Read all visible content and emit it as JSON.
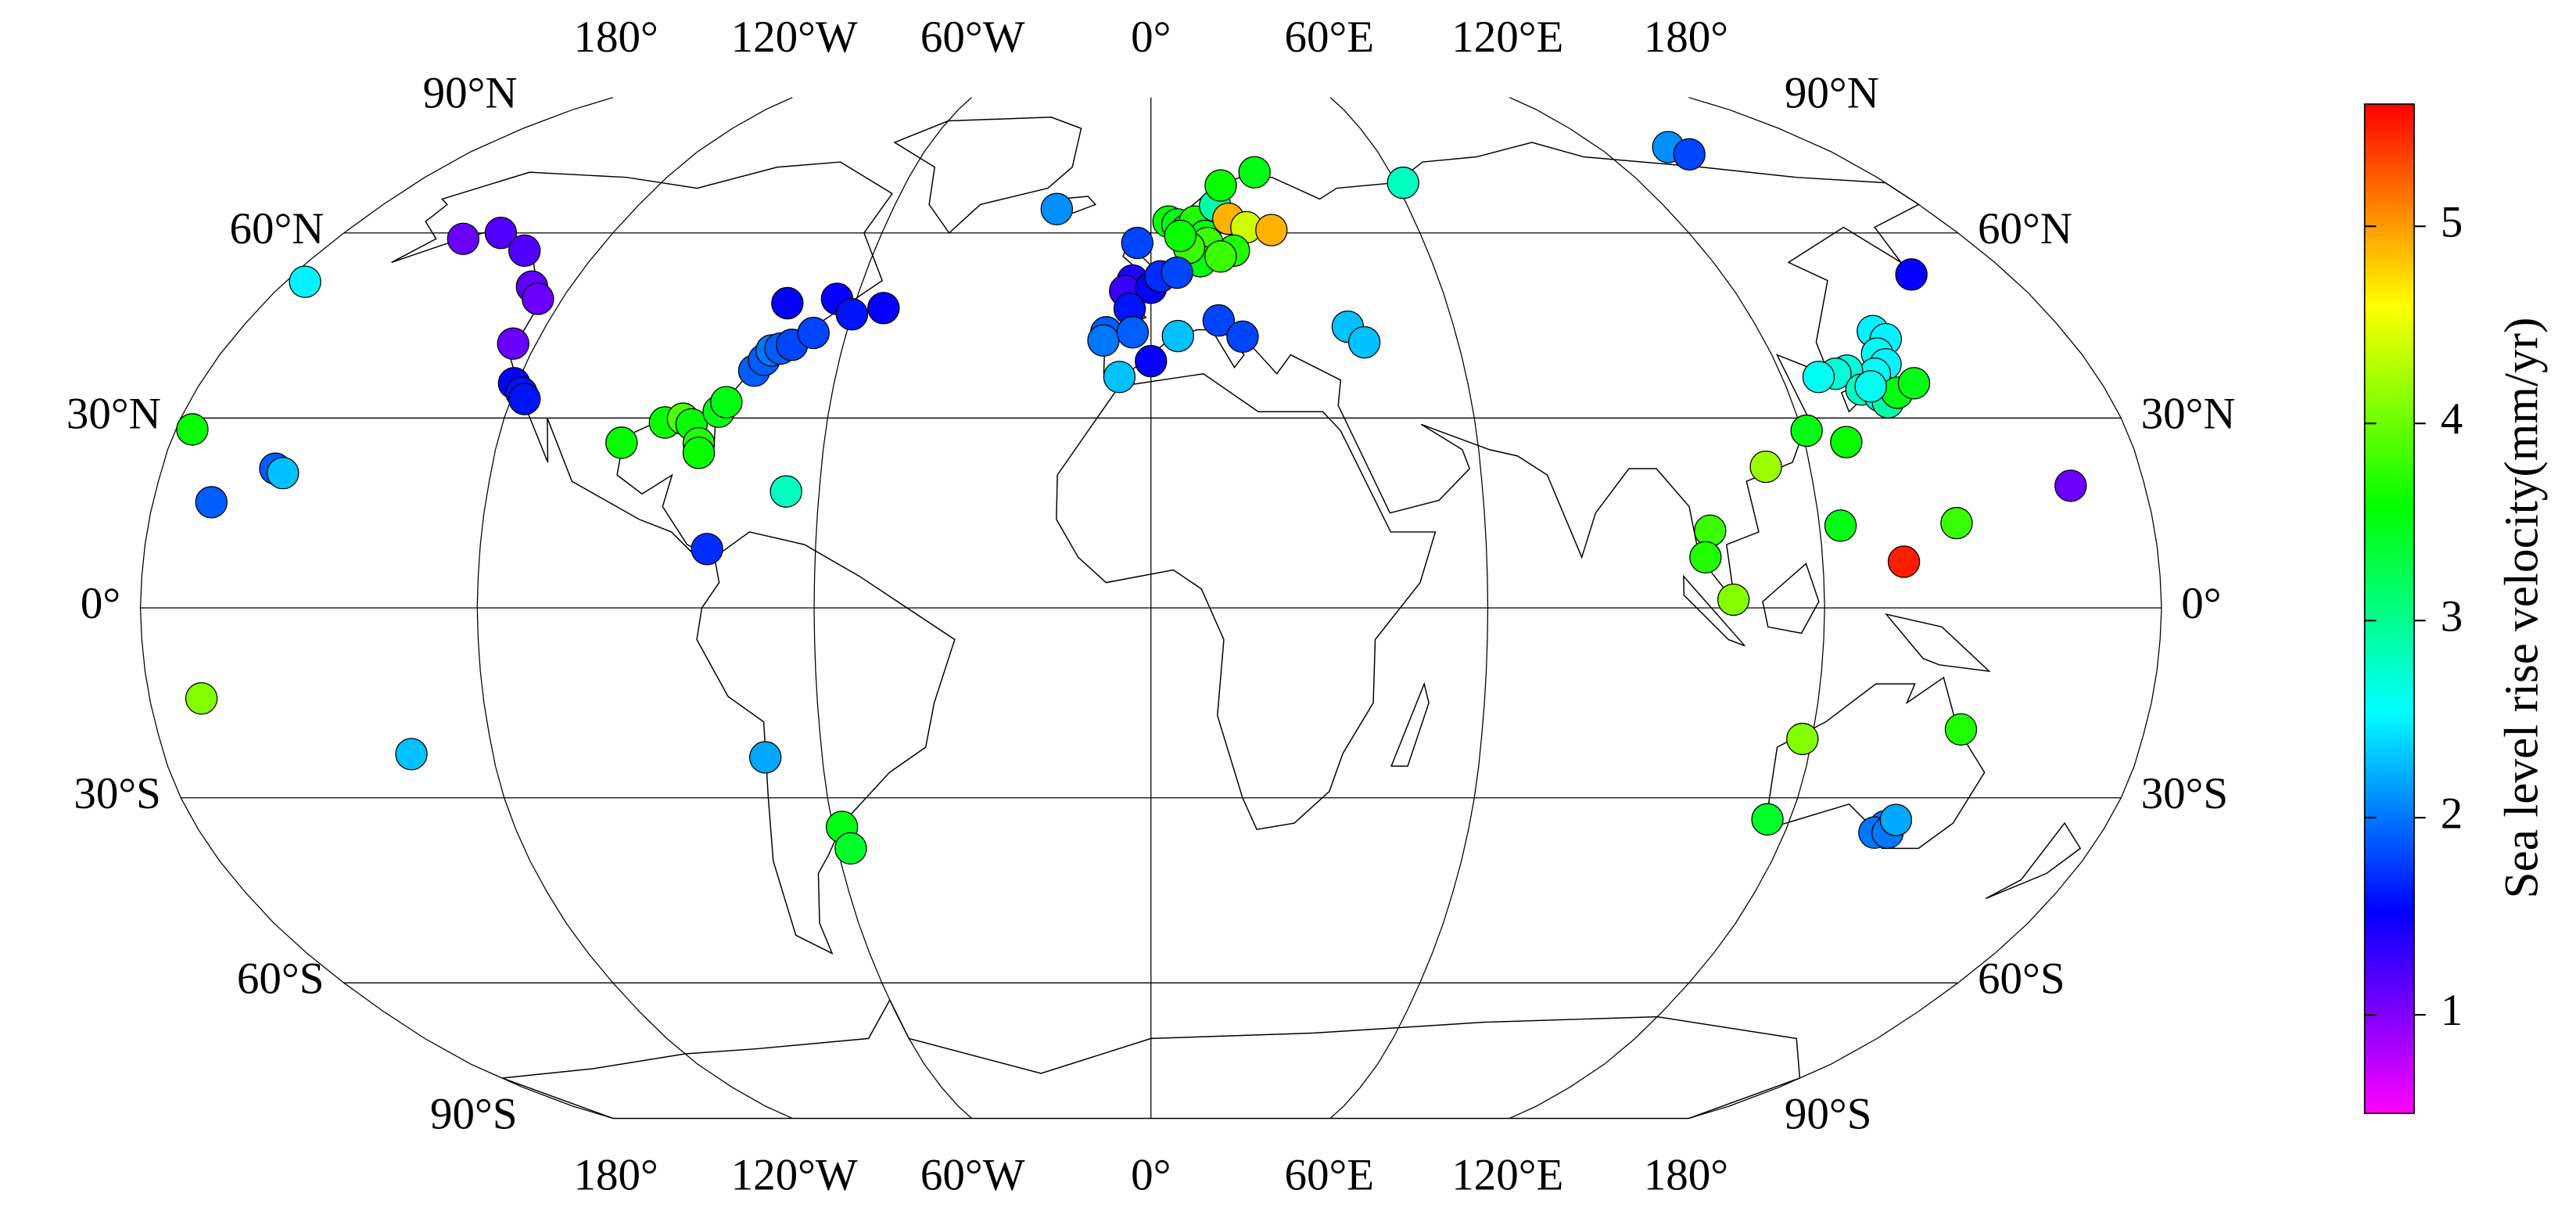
{
  "chart_data": {
    "type": "scatter",
    "projection": "robinson",
    "colorbar_label": "Sea level rise velocity(mm/yr)",
    "clim": [
      0.5,
      5.62
    ],
    "cticks": [
      1,
      2,
      3,
      4,
      5
    ],
    "colormap": [
      "#ff00ff",
      "#0000ff",
      "#00ffff",
      "#00ff00",
      "#ffff00",
      "#ff0000"
    ],
    "xlim": [
      -180,
      180
    ],
    "ylim": [
      -90,
      90
    ],
    "xticks": [
      {
        "value": -180,
        "label": "180°"
      },
      {
        "value": -120,
        "label": "120°W"
      },
      {
        "value": -60,
        "label": "60°W"
      },
      {
        "value": 0,
        "label": "0°"
      },
      {
        "value": 60,
        "label": "60°E"
      },
      {
        "value": 120,
        "label": "120°E"
      },
      {
        "value": 180,
        "label": "180°"
      }
    ],
    "yticks": [
      {
        "value": 90,
        "label": "90°N"
      },
      {
        "value": 60,
        "label": "60°N"
      },
      {
        "value": 30,
        "label": "30°N"
      },
      {
        "value": 0,
        "label": "0°"
      },
      {
        "value": -30,
        "label": "30°S"
      },
      {
        "value": -60,
        "label": "60°S"
      },
      {
        "value": -90,
        "label": "90°S"
      }
    ],
    "x": [
      -152,
      -145,
      -136,
      -128,
      -125,
      -124.5,
      -120.6,
      -118.5,
      -117.5,
      -176,
      -177,
      -159.4,
      -157.8,
      -169.5,
      -170.7,
      -134.9,
      -97.2,
      -90,
      -86.8,
      -85,
      -83,
      -82.7,
      -80.5,
      -79.5,
      -75.8,
      -74.5,
      -73.6,
      -72,
      -70,
      -66.5,
      -73.8,
      -64,
      -60,
      -54,
      -66,
      -79.4,
      -70.4,
      -58.3,
      -57.5,
      -21.9,
      -3,
      4,
      6,
      8,
      10,
      12,
      15,
      17,
      26,
      17.7,
      21.5,
      27,
      12.4,
      10.6,
      18,
      15,
      8.3,
      6.5,
      61.8,
      -3.8,
      -5.3,
      0,
      2,
      5.5,
      -4.3,
      -8.8,
      -9.3,
      -3.6,
      -6,
      0,
      5.3,
      13.5,
      18,
      39,
      41.7,
      139,
      141.5,
      159.7,
      142.5,
      144,
      140.5,
      141,
      138,
      133,
      130.5,
      127,
      134,
      137,
      138,
      140.5,
      144.5,
      136,
      121,
      127.7,
      112,
      123.8,
      100.3,
      99.1,
      103.8,
      134.5,
      144.7,
      166.6,
      118.3,
      146.7,
      115.8,
      138.5,
      137,
      139.5,
      140
    ],
    "y": [
      59,
      60,
      57,
      51,
      49,
      41.8,
      35.5,
      34,
      33,
      51.8,
      28.2,
      22,
      21.3,
      16.7,
      -14.3,
      -23.1,
      26.1,
      29.3,
      29.9,
      29,
      26,
      24.5,
      31,
      32.5,
      37.5,
      39.2,
      40.7,
      41,
      41.6,
      43.5,
      48.3,
      49,
      46.5,
      47.5,
      18.4,
      9.3,
      -23.6,
      -34.6,
      -38,
      64.2,
      58.3,
      62,
      61.5,
      60.5,
      62,
      59.5,
      64.8,
      68.5,
      71,
      62.5,
      61,
      60.5,
      58.3,
      55.2,
      57,
      56,
      57.5,
      59.5,
      69,
      52,
      50.3,
      50.8,
      52.7,
      53.3,
      47.4,
      43.6,
      42.3,
      43.6,
      36.5,
      39,
      43,
      45.5,
      42.9,
      44.5,
      42,
      76,
      74.5,
      53,
      43.8,
      42.5,
      40.2,
      38.5,
      37,
      37.5,
      37,
      36.5,
      34.5,
      33.5,
      32.5,
      34,
      35.5,
      35,
      28,
      26.2,
      22.3,
      13,
      12.2,
      8,
      1.3,
      7.3,
      13.4,
      19.3,
      -20.7,
      -19.2,
      -33.4,
      -34.5,
      -35.5,
      -35.5,
      -33.5
    ],
    "values": [
      1.1,
      1.2,
      1.2,
      1.15,
      1.1,
      1.1,
      1.5,
      1.6,
      1.6,
      2.5,
      3.6,
      1.9,
      2.3,
      1.9,
      4.1,
      2.3,
      3.6,
      3.6,
      3.9,
      3.6,
      3.7,
      3.6,
      3.5,
      3.5,
      1.9,
      1.9,
      2.0,
      1.9,
      1.8,
      1.8,
      1.5,
      1.5,
      1.6,
      1.5,
      2.8,
      1.7,
      2.2,
      3.5,
      3.4,
      2.1,
      1.8,
      3.6,
      3.5,
      3.6,
      3.7,
      3.5,
      2.9,
      3.6,
      3.5,
      4.9,
      4.4,
      4.9,
      3.8,
      3.5,
      3.7,
      3.8,
      3.8,
      3.6,
      2.8,
      1.4,
      1.3,
      1.5,
      1.7,
      1.8,
      1.6,
      1.9,
      2.0,
      1.9,
      2.3,
      1.5,
      2.3,
      1.8,
      1.8,
      2.3,
      2.3,
      2.1,
      1.8,
      1.5,
      2.5,
      2.5,
      2.6,
      2.5,
      2.6,
      2.7,
      2.7,
      2.6,
      2.8,
      2.8,
      2.9,
      3.5,
      3.5,
      2.6,
      3.5,
      3.6,
      4.2,
      3.5,
      3.8,
      3.7,
      4.1,
      5.5,
      3.8,
      1.1,
      4.1,
      3.7,
      3.4,
      2.0,
      2.0,
      2.0,
      2.2
    ]
  }
}
